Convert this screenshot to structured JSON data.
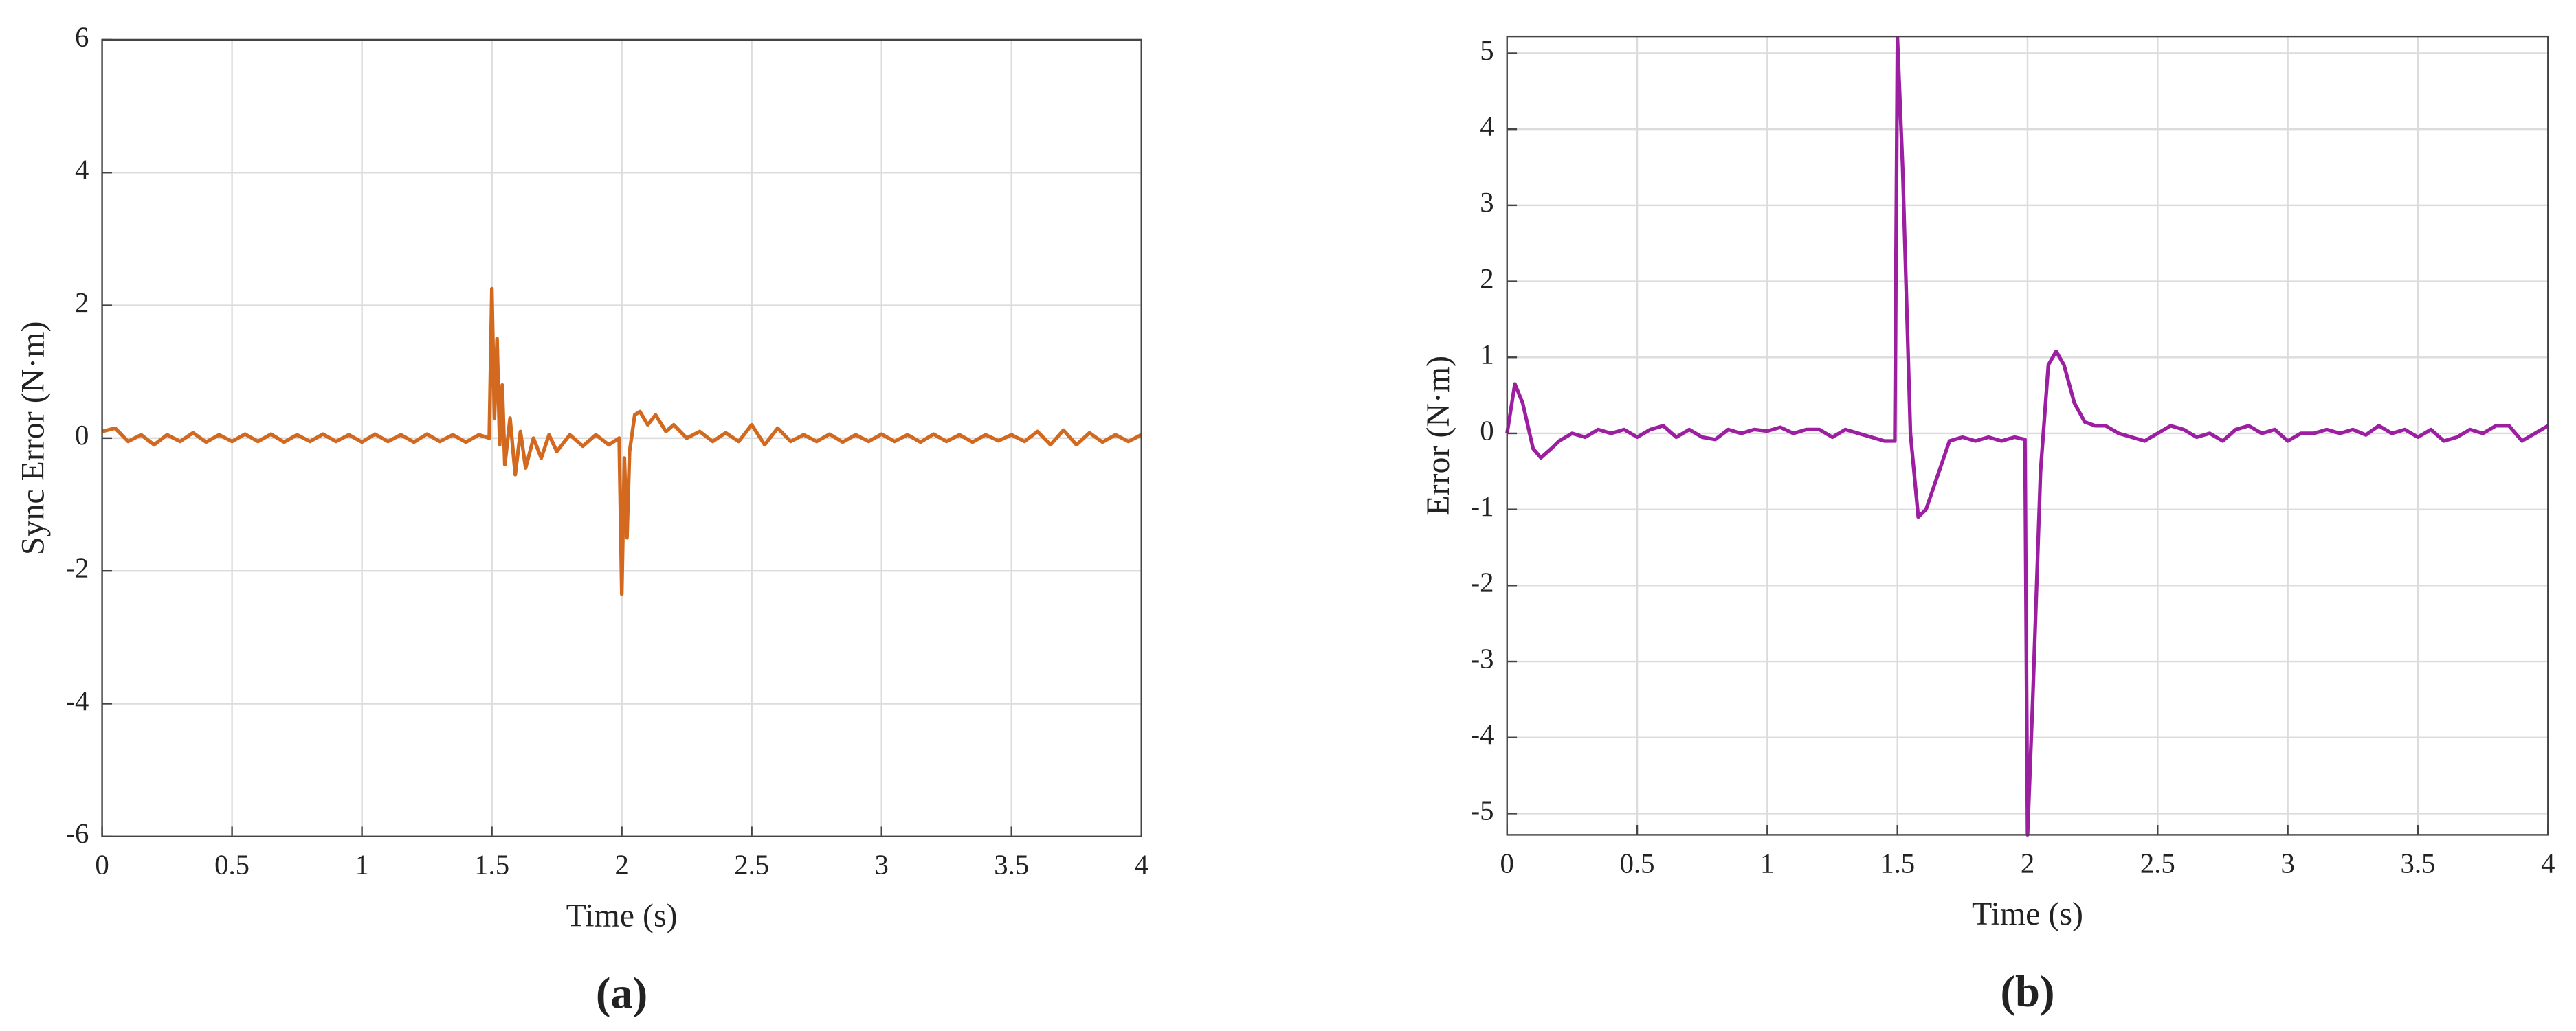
{
  "chart_data": [
    {
      "type": "line",
      "xlabel": "Time (s)",
      "ylabel": "Sync Error (N·m)",
      "caption": "(a)",
      "color": "#d2691e",
      "grid": true,
      "xlim": [
        0,
        4
      ],
      "ylim": [
        -6,
        6
      ],
      "xticks": [
        0,
        0.5,
        1,
        1.5,
        2,
        2.5,
        3,
        3.5,
        4
      ],
      "yticks": [
        -6,
        -4,
        -2,
        0,
        2,
        4,
        6
      ],
      "x": [
        0,
        0.05,
        0.1,
        0.15,
        0.2,
        0.25,
        0.3,
        0.35,
        0.4,
        0.45,
        0.5,
        0.55,
        0.6,
        0.65,
        0.7,
        0.75,
        0.8,
        0.85,
        0.9,
        0.95,
        1.0,
        1.05,
        1.1,
        1.15,
        1.2,
        1.25,
        1.3,
        1.35,
        1.4,
        1.45,
        1.49,
        1.5,
        1.51,
        1.52,
        1.53,
        1.54,
        1.55,
        1.57,
        1.59,
        1.61,
        1.63,
        1.66,
        1.69,
        1.72,
        1.75,
        1.8,
        1.85,
        1.9,
        1.95,
        1.99,
        2.0,
        2.01,
        2.02,
        2.03,
        2.05,
        2.07,
        2.1,
        2.13,
        2.17,
        2.2,
        2.25,
        2.3,
        2.35,
        2.4,
        2.45,
        2.5,
        2.55,
        2.6,
        2.65,
        2.7,
        2.75,
        2.8,
        2.85,
        2.9,
        2.95,
        3.0,
        3.05,
        3.1,
        3.15,
        3.2,
        3.25,
        3.3,
        3.35,
        3.4,
        3.45,
        3.5,
        3.55,
        3.6,
        3.65,
        3.7,
        3.75,
        3.8,
        3.85,
        3.9,
        3.95,
        4.0
      ],
      "values": [
        0.1,
        0.15,
        -0.05,
        0.05,
        -0.1,
        0.05,
        -0.05,
        0.08,
        -0.06,
        0.05,
        -0.05,
        0.06,
        -0.05,
        0.06,
        -0.06,
        0.05,
        -0.05,
        0.06,
        -0.05,
        0.05,
        -0.06,
        0.06,
        -0.05,
        0.05,
        -0.06,
        0.06,
        -0.05,
        0.05,
        -0.06,
        0.05,
        0.0,
        2.25,
        0.3,
        1.5,
        -0.1,
        0.8,
        -0.4,
        0.3,
        -0.55,
        0.1,
        -0.45,
        0.0,
        -0.3,
        0.05,
        -0.2,
        0.05,
        -0.12,
        0.05,
        -0.1,
        0.0,
        -2.35,
        -0.3,
        -1.5,
        -0.2,
        0.35,
        0.4,
        0.2,
        0.35,
        0.1,
        0.2,
        0.0,
        0.1,
        -0.05,
        0.08,
        -0.05,
        0.2,
        -0.1,
        0.15,
        -0.05,
        0.05,
        -0.05,
        0.06,
        -0.06,
        0.05,
        -0.05,
        0.06,
        -0.05,
        0.05,
        -0.06,
        0.06,
        -0.05,
        0.05,
        -0.06,
        0.05,
        -0.04,
        0.05,
        -0.05,
        0.1,
        -0.1,
        0.12,
        -0.1,
        0.08,
        -0.06,
        0.05,
        -0.05,
        0.05
      ]
    },
    {
      "type": "line",
      "xlabel": "Time (s)",
      "ylabel": "Error (N·m)",
      "caption": "(b)",
      "color": "#9b1fa0",
      "grid": true,
      "xlim": [
        0,
        4
      ],
      "ylim": [
        -5.28,
        5.22
      ],
      "xticks": [
        0,
        0.5,
        1,
        1.5,
        2,
        2.5,
        3,
        3.5,
        4
      ],
      "yticks": [
        -5,
        -4,
        -3,
        -2,
        -1,
        0,
        1,
        2,
        3,
        4,
        5
      ],
      "x": [
        0,
        0.03,
        0.06,
        0.1,
        0.13,
        0.17,
        0.2,
        0.25,
        0.3,
        0.35,
        0.4,
        0.45,
        0.5,
        0.55,
        0.6,
        0.65,
        0.7,
        0.75,
        0.8,
        0.85,
        0.9,
        0.95,
        1.0,
        1.05,
        1.1,
        1.15,
        1.2,
        1.25,
        1.3,
        1.35,
        1.4,
        1.45,
        1.49,
        1.5,
        1.52,
        1.55,
        1.58,
        1.61,
        1.65,
        1.7,
        1.75,
        1.8,
        1.85,
        1.9,
        1.95,
        1.99,
        2.0,
        2.02,
        2.05,
        2.08,
        2.11,
        2.14,
        2.18,
        2.22,
        2.26,
        2.3,
        2.35,
        2.4,
        2.45,
        2.5,
        2.55,
        2.6,
        2.65,
        2.7,
        2.75,
        2.8,
        2.85,
        2.9,
        2.95,
        3.0,
        3.05,
        3.1,
        3.15,
        3.2,
        3.25,
        3.3,
        3.35,
        3.4,
        3.45,
        3.5,
        3.55,
        3.6,
        3.65,
        3.7,
        3.75,
        3.8,
        3.85,
        3.9,
        3.95,
        4.0
      ],
      "values": [
        0,
        0.65,
        0.4,
        -0.2,
        -0.32,
        -0.2,
        -0.1,
        0.0,
        -0.05,
        0.05,
        0.0,
        0.05,
        -0.05,
        0.05,
        0.1,
        -0.05,
        0.05,
        -0.05,
        -0.08,
        0.05,
        0.0,
        0.05,
        0.03,
        0.08,
        0.0,
        0.05,
        0.05,
        -0.05,
        0.05,
        0.0,
        -0.05,
        -0.1,
        -0.1,
        5.2,
        3.5,
        0.0,
        -1.1,
        -1.0,
        -0.6,
        -0.1,
        -0.05,
        -0.1,
        -0.05,
        -0.1,
        -0.05,
        -0.08,
        -5.28,
        -3.5,
        -0.5,
        0.9,
        1.08,
        0.9,
        0.4,
        0.15,
        0.1,
        0.1,
        0.0,
        -0.05,
        -0.1,
        0.0,
        0.1,
        0.05,
        -0.05,
        0.0,
        -0.1,
        0.05,
        0.1,
        0.0,
        0.05,
        -0.1,
        0.0,
        0.0,
        0.05,
        0.0,
        0.05,
        -0.02,
        0.1,
        0.0,
        0.05,
        -0.05,
        0.05,
        -0.1,
        -0.05,
        0.05,
        0.0,
        0.1,
        0.1,
        -0.1,
        0.0,
        0.1
      ]
    }
  ]
}
